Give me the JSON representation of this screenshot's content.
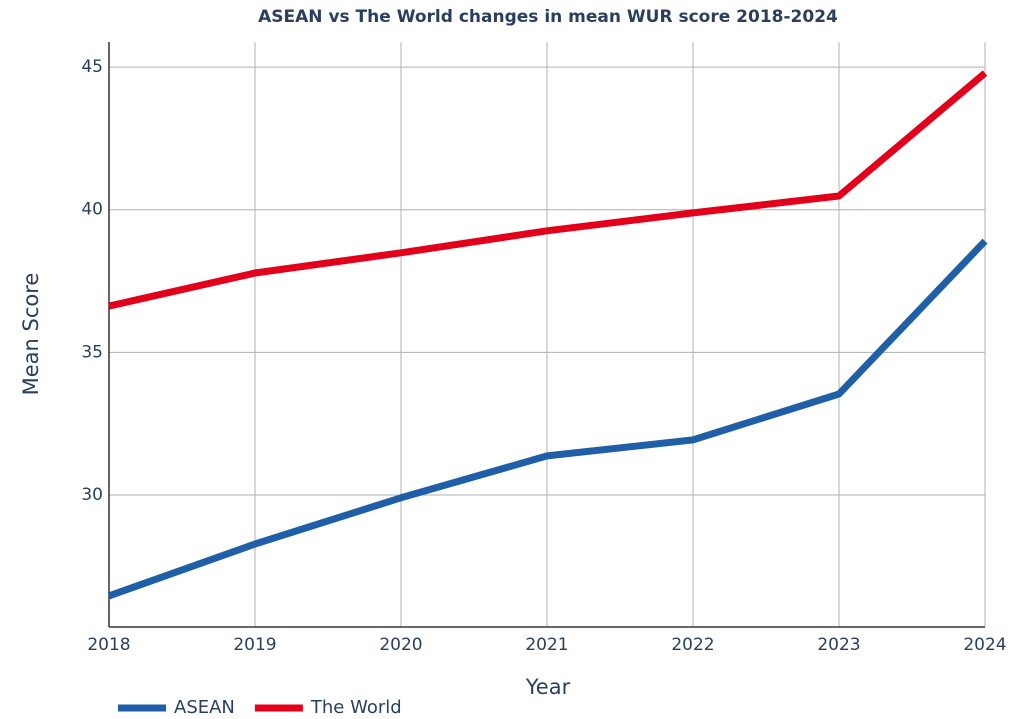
{
  "chart_data": {
    "type": "line",
    "title": "ASEAN vs The World changes in mean WUR score 2018-2024",
    "x_label": "Year",
    "y_label": "Mean Score",
    "x": [
      2018,
      2019,
      2020,
      2021,
      2022,
      2023,
      2024
    ],
    "series": [
      {
        "name": "ASEAN",
        "color": "#1f5fa8",
        "values": [
          26.46,
          28.28,
          29.9,
          31.37,
          31.93,
          33.54,
          38.9
        ]
      },
      {
        "name": "The World",
        "color": "#e3001b",
        "values": [
          36.62,
          37.78,
          38.49,
          39.26,
          39.89,
          40.48,
          44.79
        ]
      }
    ],
    "xlim": [
      2018,
      2024
    ],
    "xticks": [
      2018,
      2019,
      2020,
      2021,
      2022,
      2023,
      2024
    ],
    "ylim": [
      25.37,
      45.88
    ],
    "yticks": [
      30,
      35,
      40,
      45
    ],
    "grid": true,
    "legend": "bottom-left"
  }
}
